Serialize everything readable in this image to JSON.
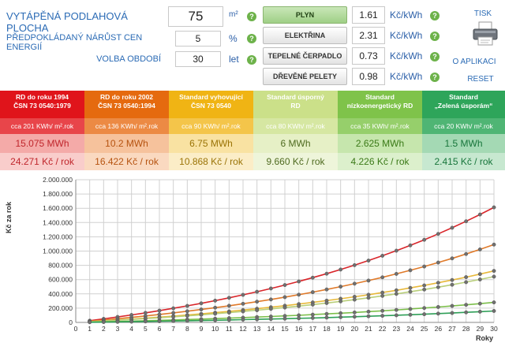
{
  "form": {
    "area_label": "VYTÁPĚNÁ PODLAHOVÁ PLOCHA",
    "area_value": "75",
    "area_unit": "m²",
    "growth_label": "PŘEDPOKLÁDANÝ NÁRŮST CEN ENERGIÍ",
    "growth_value": "5",
    "growth_unit": "%",
    "period_label": "VOLBA OBDOBÍ",
    "period_value": "30",
    "period_unit": "let",
    "help_glyph": "?"
  },
  "fuels": [
    {
      "label": "PLYN",
      "price": "1.61",
      "unit": "Kč/kWh",
      "active": true
    },
    {
      "label": "ELEKTŘINA",
      "price": "2.31",
      "unit": "Kč/kWh",
      "active": false
    },
    {
      "label": "TEPELNÉ ČERPADLO",
      "price": "0.73",
      "unit": "Kč/kWh",
      "active": false
    },
    {
      "label": "DŘEVĚNÉ PELETY",
      "price": "0.98",
      "unit": "Kč/kWh",
      "active": false
    }
  ],
  "links": {
    "print": "TISK",
    "about": "O APLIKACI",
    "reset": "RESET"
  },
  "standards": [
    {
      "line1": "RD do roku 1994",
      "line2": "ČSN 73 0540:1979",
      "sub": "cca 201 KWh/ m².rok",
      "mwh": "15.075 MWh",
      "kc": "24.271 Kč / rok",
      "head": "#e0141b",
      "subbg": "#e8454a",
      "mwhbg": "#f4aaa8",
      "kcbg": "#f9cdcb",
      "txt": "#c0262c"
    },
    {
      "line1": "RD do roku 2002",
      "line2": "ČSN 73 0540:1994",
      "sub": "cca 136 KWh/ m².rok",
      "mwh": "10.2 MWh",
      "kc": "16.422 Kč / rok",
      "head": "#e56a0f",
      "subbg": "#ec8a44",
      "mwhbg": "#f6c29c",
      "kcbg": "#fad9c0",
      "txt": "#b65310"
    },
    {
      "line1": "Standard vyhovující",
      "line2": "ČSN 73 0540",
      "sub": "cca 90 KWh/ m².rok",
      "mwh": "6.75 MWh",
      "kc": "10.868 Kč / rok",
      "head": "#f0b414",
      "subbg": "#f4c54a",
      "mwhbg": "#f9e2a2",
      "kcbg": "#fbedc7",
      "txt": "#9b7407"
    },
    {
      "line1": "Standard úsporný",
      "line2": "RD",
      "sub": "cca 80 KWh/ m².rok",
      "mwh": "6 MWh",
      "kc": "9.660 Kč / rok",
      "head": "#cbe089",
      "subbg": "#d6e7a2",
      "mwhbg": "#e6f0c6",
      "kcbg": "#eef5da",
      "txt": "#4e6a1f"
    },
    {
      "line1": "Standard",
      "line2": "nízkoenergetický RD",
      "sub": "cca 35 KWh/ m².rok",
      "mwh": "2.625 MWh",
      "kc": "4.226 Kč / rok",
      "head": "#7fc34a",
      "subbg": "#96cf6b",
      "mwhbg": "#c6e6ad",
      "kcbg": "#dcf0cc",
      "txt": "#3b7a18"
    },
    {
      "line1": "Standard",
      "line2": "„Zelená úsporám“",
      "sub": "cca 20 KWh/ m².rok",
      "mwh": "1.5 MWh",
      "kc": "2.415 Kč / rok",
      "head": "#2ea55a",
      "subbg": "#4fb574",
      "mwhbg": "#a4d9b4",
      "kcbg": "#c7e8d0",
      "txt": "#17753b"
    }
  ],
  "chart_data": {
    "type": "line",
    "ylabel": "Kč za rok",
    "xlabel": "Roky",
    "x": [
      1,
      2,
      3,
      4,
      5,
      6,
      7,
      8,
      9,
      10,
      11,
      12,
      13,
      14,
      15,
      16,
      17,
      18,
      19,
      20,
      21,
      22,
      23,
      24,
      25,
      26,
      27,
      28,
      29,
      30
    ],
    "ylim": [
      0,
      2000000
    ],
    "yticks": [
      "0",
      "200.000",
      "400.000",
      "600.000",
      "800.000",
      "1.000.000",
      "1.200.000",
      "1.400.000",
      "1.600.000",
      "1.800.000",
      "2.000.000"
    ],
    "grid": true,
    "growth_rate": 0.05,
    "series": [
      {
        "annual": 24271,
        "color": "#d9252a"
      },
      {
        "annual": 16422,
        "color": "#e07a2a"
      },
      {
        "annual": 10868,
        "color": "#e8b93a"
      },
      {
        "annual": 9660,
        "color": "#b9cf7a"
      },
      {
        "annual": 4226,
        "color": "#7cbf4a"
      },
      {
        "annual": 2415,
        "color": "#2e9f57"
      }
    ]
  }
}
